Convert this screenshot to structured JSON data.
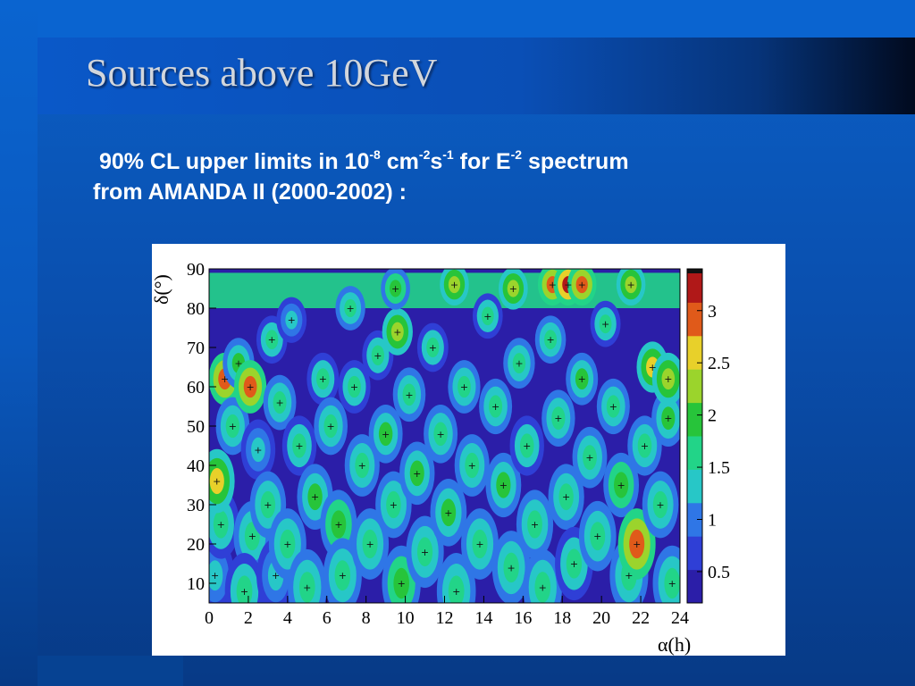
{
  "slide": {
    "title": "Sources above 10GeV",
    "subtitle": {
      "lead": "90% CL upper limits in 10",
      "exp1": "-8",
      "unit_cm": " cm",
      "exp2": "-2",
      "unit_s": "s",
      "exp3": "-1",
      "for_e": " for E",
      "exp4": "-2",
      "spectrum": " spectrum",
      "line2": "from AMANDA II (2000-2002) :"
    }
  },
  "chart_data": {
    "type": "heatmap",
    "title": "",
    "xlabel": "α(h)",
    "ylabel": "δ(°)",
    "xlim": [
      0,
      24
    ],
    "ylim": [
      5,
      90
    ],
    "xticks": [
      "0",
      "2",
      "4",
      "6",
      "8",
      "10",
      "12",
      "14",
      "16",
      "18",
      "20",
      "22",
      "24"
    ],
    "yticks": [
      "10",
      "20",
      "30",
      "40",
      "50",
      "60",
      "70",
      "80",
      "90"
    ],
    "colorbar": {
      "range": [
        0.2,
        3.4
      ],
      "ticks": [
        "0.5",
        "1",
        "1.5",
        "2",
        "2.5",
        "3"
      ],
      "colors": [
        "#2b1ea8",
        "#2f3fd6",
        "#2f76e6",
        "#27c7c7",
        "#22d488",
        "#27c43a",
        "#9bd42c",
        "#e8d02a",
        "#e05a1a",
        "#b01818"
      ]
    },
    "grid": false,
    "legend": "none",
    "values": [
      {
        "ra": 0.3,
        "dec": 12,
        "limit": 1.3
      },
      {
        "ra": 0.6,
        "dec": 25,
        "limit": 1.5
      },
      {
        "ra": 0.4,
        "dec": 36,
        "limit": 2.6
      },
      {
        "ra": 0.8,
        "dec": 62,
        "limit": 2.9
      },
      {
        "ra": 1.5,
        "dec": 66,
        "limit": 1.8
      },
      {
        "ra": 1.2,
        "dec": 50,
        "limit": 1.6
      },
      {
        "ra": 2.1,
        "dec": 60,
        "limit": 2.9
      },
      {
        "ra": 2.5,
        "dec": 44,
        "limit": 1.4
      },
      {
        "ra": 2.2,
        "dec": 22,
        "limit": 1.6
      },
      {
        "ra": 1.8,
        "dec": 8,
        "limit": 1.5
      },
      {
        "ra": 3.0,
        "dec": 30,
        "limit": 1.7
      },
      {
        "ra": 3.4,
        "dec": 12,
        "limit": 1.4
      },
      {
        "ra": 3.6,
        "dec": 56,
        "limit": 1.6
      },
      {
        "ra": 3.2,
        "dec": 72,
        "limit": 1.5
      },
      {
        "ra": 4.2,
        "dec": 77,
        "limit": 1.4
      },
      {
        "ra": 4.6,
        "dec": 45,
        "limit": 1.5
      },
      {
        "ra": 4.0,
        "dec": 20,
        "limit": 1.6
      },
      {
        "ra": 5.0,
        "dec": 9,
        "limit": 1.7
      },
      {
        "ra": 5.4,
        "dec": 32,
        "limit": 1.8
      },
      {
        "ra": 5.8,
        "dec": 62,
        "limit": 1.5
      },
      {
        "ra": 6.2,
        "dec": 50,
        "limit": 1.7
      },
      {
        "ra": 6.6,
        "dec": 25,
        "limit": 1.9
      },
      {
        "ra": 6.8,
        "dec": 12,
        "limit": 1.6
      },
      {
        "ra": 7.2,
        "dec": 80,
        "limit": 1.6
      },
      {
        "ra": 7.4,
        "dec": 60,
        "limit": 1.5
      },
      {
        "ra": 7.8,
        "dec": 40,
        "limit": 1.6
      },
      {
        "ra": 8.2,
        "dec": 20,
        "limit": 1.7
      },
      {
        "ra": 8.6,
        "dec": 68,
        "limit": 1.5
      },
      {
        "ra": 9.0,
        "dec": 48,
        "limit": 1.8
      },
      {
        "ra": 9.4,
        "dec": 30,
        "limit": 1.7
      },
      {
        "ra": 9.8,
        "dec": 10,
        "limit": 1.9
      },
      {
        "ra": 9.6,
        "dec": 74,
        "limit": 2.3
      },
      {
        "ra": 10.2,
        "dec": 58,
        "limit": 1.6
      },
      {
        "ra": 10.6,
        "dec": 38,
        "limit": 1.8
      },
      {
        "ra": 11.0,
        "dec": 18,
        "limit": 1.7
      },
      {
        "ra": 11.4,
        "dec": 70,
        "limit": 1.5
      },
      {
        "ra": 11.8,
        "dec": 48,
        "limit": 1.6
      },
      {
        "ra": 12.2,
        "dec": 28,
        "limit": 1.8
      },
      {
        "ra": 12.6,
        "dec": 8,
        "limit": 1.6
      },
      {
        "ra": 13.0,
        "dec": 60,
        "limit": 1.7
      },
      {
        "ra": 13.4,
        "dec": 40,
        "limit": 1.6
      },
      {
        "ra": 13.8,
        "dec": 20,
        "limit": 1.7
      },
      {
        "ra": 14.2,
        "dec": 78,
        "limit": 1.5
      },
      {
        "ra": 14.6,
        "dec": 55,
        "limit": 1.6
      },
      {
        "ra": 15.0,
        "dec": 35,
        "limit": 1.8
      },
      {
        "ra": 15.4,
        "dec": 14,
        "limit": 1.7
      },
      {
        "ra": 15.8,
        "dec": 66,
        "limit": 1.6
      },
      {
        "ra": 16.2,
        "dec": 45,
        "limit": 1.5
      },
      {
        "ra": 16.6,
        "dec": 25,
        "limit": 1.7
      },
      {
        "ra": 17.0,
        "dec": 9,
        "limit": 1.6
      },
      {
        "ra": 17.4,
        "dec": 72,
        "limit": 1.6
      },
      {
        "ra": 17.8,
        "dec": 52,
        "limit": 1.7
      },
      {
        "ra": 18.2,
        "dec": 32,
        "limit": 1.6
      },
      {
        "ra": 18.6,
        "dec": 15,
        "limit": 1.5
      },
      {
        "ra": 19.0,
        "dec": 62,
        "limit": 1.8
      },
      {
        "ra": 19.4,
        "dec": 42,
        "limit": 1.6
      },
      {
        "ra": 19.8,
        "dec": 22,
        "limit": 1.7
      },
      {
        "ra": 20.2,
        "dec": 76,
        "limit": 1.5
      },
      {
        "ra": 20.6,
        "dec": 55,
        "limit": 1.6
      },
      {
        "ra": 21.0,
        "dec": 35,
        "limit": 1.9
      },
      {
        "ra": 21.4,
        "dec": 12,
        "limit": 1.7
      },
      {
        "ra": 21.8,
        "dec": 20,
        "limit": 2.9
      },
      {
        "ra": 22.2,
        "dec": 45,
        "limit": 1.6
      },
      {
        "ra": 22.6,
        "dec": 65,
        "limit": 2.5
      },
      {
        "ra": 23.0,
        "dec": 30,
        "limit": 1.7
      },
      {
        "ra": 23.4,
        "dec": 52,
        "limit": 1.8
      },
      {
        "ra": 23.6,
        "dec": 10,
        "limit": 1.6
      },
      {
        "ra": 23.4,
        "dec": 62,
        "limit": 2.4
      },
      {
        "ra": 17.5,
        "dec": 86,
        "limit": 2.9
      },
      {
        "ra": 18.3,
        "dec": 86,
        "limit": 3.2
      },
      {
        "ra": 19.0,
        "dec": 86,
        "limit": 2.9
      },
      {
        "ra": 12.5,
        "dec": 86,
        "limit": 2.3
      },
      {
        "ra": 9.5,
        "dec": 85,
        "limit": 2.1
      },
      {
        "ra": 15.5,
        "dec": 85,
        "limit": 2.4
      },
      {
        "ra": 21.5,
        "dec": 86,
        "limit": 2.3
      }
    ]
  }
}
